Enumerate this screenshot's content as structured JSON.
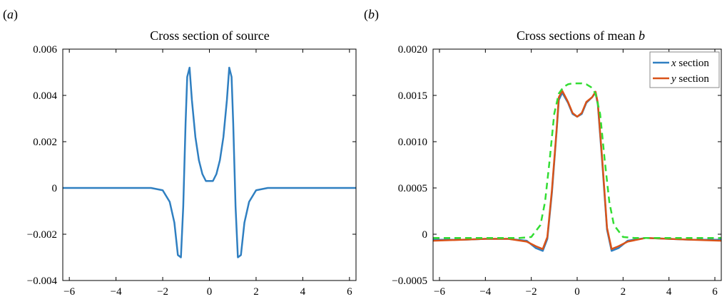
{
  "chart_data": [
    {
      "panel_label": "a",
      "type": "line",
      "title": "Cross section of source",
      "xlabel": "",
      "ylabel": "",
      "xlim": [
        -6.28,
        6.28
      ],
      "ylim": [
        -0.004,
        0.006
      ],
      "xticks": [
        -6,
        -4,
        -2,
        0,
        2,
        4,
        6
      ],
      "xtick_labels": [
        "−6",
        "−4",
        "−2",
        "0",
        "2",
        "4",
        "6"
      ],
      "yticks": [
        -0.004,
        -0.002,
        0,
        0.002,
        0.004,
        0.006
      ],
      "ytick_labels": [
        "−0.004",
        "−0.002",
        "0",
        "0.002",
        "0.004",
        "0.006"
      ],
      "grid": false,
      "series": [
        {
          "color": "#2f7fc1",
          "dashed": false,
          "x": [
            -6.28,
            -4,
            -2.5,
            -2.0,
            -1.7,
            -1.5,
            -1.35,
            -1.22,
            -1.12,
            -1.02,
            -0.95,
            -0.85,
            -0.75,
            -0.6,
            -0.45,
            -0.3,
            -0.15,
            0,
            0.15,
            0.3,
            0.45,
            0.6,
            0.75,
            0.85,
            0.95,
            1.02,
            1.12,
            1.22,
            1.35,
            1.5,
            1.7,
            2.0,
            2.5,
            4,
            6.28
          ],
          "y": [
            0,
            0,
            0,
            -0.0001,
            -0.0006,
            -0.0015,
            -0.0029,
            -0.003,
            -0.0008,
            0.0028,
            0.0048,
            0.0052,
            0.0038,
            0.0022,
            0.0012,
            0.0006,
            0.0003,
            0.0003,
            0.0003,
            0.0006,
            0.0012,
            0.0022,
            0.0038,
            0.0052,
            0.0048,
            0.0028,
            -0.0008,
            -0.003,
            -0.0029,
            -0.0015,
            -0.0006,
            -0.0001,
            0,
            0,
            0
          ]
        }
      ]
    },
    {
      "panel_label": "b",
      "type": "line",
      "title": "Cross sections of mean ",
      "title_var": "b",
      "xlabel": "",
      "ylabel": "",
      "xlim": [
        -6.28,
        6.28
      ],
      "ylim": [
        -0.0005,
        0.002
      ],
      "xticks": [
        -6,
        -4,
        -2,
        0,
        2,
        4,
        6
      ],
      "xtick_labels": [
        "−6",
        "−4",
        "−2",
        "0",
        "2",
        "4",
        "6"
      ],
      "yticks": [
        -0.0005,
        0,
        0.0005,
        0.001,
        0.0015,
        0.002
      ],
      "ytick_labels": [
        "−0.0005",
        "0",
        "0.0005",
        "0.0010",
        "0.0015",
        "0.0020"
      ],
      "grid": false,
      "legend": {
        "position": "top-right",
        "entries": [
          {
            "var": "x",
            "text": " section",
            "color": "#2f7fc1"
          },
          {
            "var": "y",
            "text": " section",
            "color": "#d95319"
          }
        ]
      },
      "series": [
        {
          "color": "#2f7fc1",
          "dashed": false,
          "x": [
            -6.28,
            -5,
            -4,
            -3,
            -2.2,
            -1.8,
            -1.5,
            -1.3,
            -1.1,
            -0.9,
            -0.8,
            -0.65,
            -0.4,
            -0.2,
            0,
            0.2,
            0.4,
            0.65,
            0.8,
            0.9,
            1.1,
            1.3,
            1.5,
            1.8,
            2.2,
            3,
            4,
            5,
            6.28
          ],
          "y": [
            -6e-05,
            -6e-05,
            -5e-05,
            -5e-05,
            -7e-05,
            -0.00015,
            -0.00018,
            -5e-05,
            0.00045,
            0.0011,
            0.00145,
            0.00153,
            0.00142,
            0.0013,
            0.00127,
            0.0013,
            0.00142,
            0.00148,
            0.00153,
            0.0014,
            0.00075,
            5e-05,
            -0.00018,
            -0.00015,
            -7e-05,
            -4e-05,
            -5e-05,
            -6e-05,
            -6e-05
          ]
        },
        {
          "color": "#d95319",
          "dashed": false,
          "x": [
            -6.28,
            -5,
            -4,
            -3,
            -2.2,
            -1.8,
            -1.5,
            -1.3,
            -1.1,
            -0.9,
            -0.8,
            -0.65,
            -0.4,
            -0.2,
            0,
            0.2,
            0.4,
            0.65,
            0.8,
            0.9,
            1.1,
            1.3,
            1.5,
            1.8,
            2.2,
            3,
            4,
            5,
            6.28
          ],
          "y": [
            -7e-05,
            -6e-05,
            -5e-05,
            -5e-05,
            -8e-05,
            -0.00013,
            -0.00016,
            -3e-05,
            0.00048,
            0.00112,
            0.00148,
            0.00155,
            0.00143,
            0.00131,
            0.00127,
            0.00131,
            0.00143,
            0.00148,
            0.00154,
            0.00142,
            0.00078,
            7e-05,
            -0.00016,
            -0.00013,
            -8e-05,
            -4e-05,
            -5e-05,
            -6e-05,
            -7e-05
          ]
        },
        {
          "color": "#33dd33",
          "dashed": true,
          "x": [
            -6.28,
            -4,
            -2.5,
            -2.0,
            -1.6,
            -1.4,
            -1.2,
            -1.0,
            -0.8,
            -0.6,
            -0.4,
            -0.2,
            0,
            0.2,
            0.4,
            0.6,
            0.8,
            1.0,
            1.2,
            1.4,
            1.6,
            2.0,
            2.5,
            4,
            6.28
          ],
          "y": [
            -4e-05,
            -4e-05,
            -4e-05,
            -3e-05,
            0.0001,
            0.00035,
            0.0008,
            0.0013,
            0.00152,
            0.00159,
            0.00162,
            0.00163,
            0.00163,
            0.00163,
            0.00162,
            0.00159,
            0.00152,
            0.0013,
            0.0008,
            0.00035,
            0.0001,
            -3e-05,
            -4e-05,
            -4e-05,
            -4e-05
          ]
        }
      ]
    }
  ]
}
